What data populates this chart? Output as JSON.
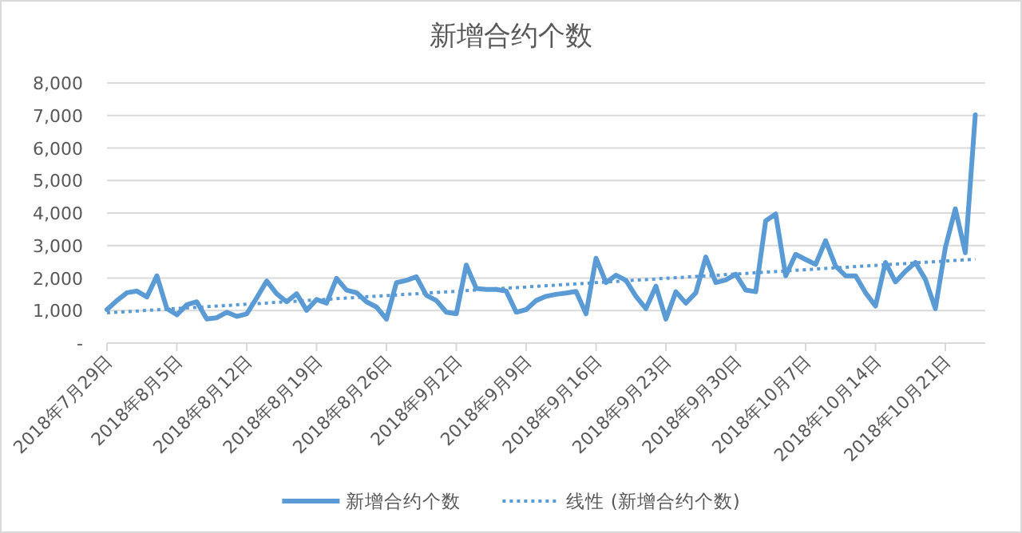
{
  "chart_data": {
    "type": "line",
    "title": "新增合约个数",
    "xlim": [
      "2018-07-29",
      "2018-10-25"
    ],
    "xticks": [
      {
        "value": "2018-07-29",
        "label": "2018年7月29日"
      },
      {
        "value": "2018-08-05",
        "label": "2018年8月5日"
      },
      {
        "value": "2018-08-12",
        "label": "2018年8月12日"
      },
      {
        "value": "2018-08-19",
        "label": "2018年8月19日"
      },
      {
        "value": "2018-08-26",
        "label": "2018年8月26日"
      },
      {
        "value": "2018-09-02",
        "label": "2018年9月2日"
      },
      {
        "value": "2018-09-09",
        "label": "2018年9月9日"
      },
      {
        "value": "2018-09-16",
        "label": "2018年9月16日"
      },
      {
        "value": "2018-09-23",
        "label": "2018年9月23日"
      },
      {
        "value": "2018-09-30",
        "label": "2018年9月30日"
      },
      {
        "value": "2018-10-07",
        "label": "2018年10月7日"
      },
      {
        "value": "2018-10-14",
        "label": "2018年10月14日"
      },
      {
        "value": "2018-10-21",
        "label": "2018年10月21日"
      }
    ],
    "ylim": [
      0,
      8000
    ],
    "yticks": [
      {
        "value": 0,
        "label": "-"
      },
      {
        "value": 1000,
        "label": "1,000"
      },
      {
        "value": 2000,
        "label": "2,000"
      },
      {
        "value": 3000,
        "label": "3,000"
      },
      {
        "value": 4000,
        "label": "4,000"
      },
      {
        "value": 5000,
        "label": "5,000"
      },
      {
        "value": 6000,
        "label": "6,000"
      },
      {
        "value": 7000,
        "label": "7,000"
      },
      {
        "value": 8000,
        "label": "8,000"
      }
    ],
    "grid": "y",
    "legend": "bottom",
    "series": [
      {
        "name": "新增合约个数",
        "color": "#5b9bd5",
        "line_style": "solid",
        "x": [
          "2018-07-29",
          "2018-07-30",
          "2018-07-31",
          "2018-08-01",
          "2018-08-02",
          "2018-08-03",
          "2018-08-04",
          "2018-08-05",
          "2018-08-06",
          "2018-08-07",
          "2018-08-08",
          "2018-08-09",
          "2018-08-10",
          "2018-08-11",
          "2018-08-12",
          "2018-08-13",
          "2018-08-14",
          "2018-08-15",
          "2018-08-16",
          "2018-08-17",
          "2018-08-18",
          "2018-08-19",
          "2018-08-20",
          "2018-08-21",
          "2018-08-22",
          "2018-08-23",
          "2018-08-24",
          "2018-08-25",
          "2018-08-26",
          "2018-08-27",
          "2018-08-28",
          "2018-08-29",
          "2018-08-30",
          "2018-08-31",
          "2018-09-01",
          "2018-09-02",
          "2018-09-03",
          "2018-09-04",
          "2018-09-05",
          "2018-09-06",
          "2018-09-07",
          "2018-09-08",
          "2018-09-09",
          "2018-09-10",
          "2018-09-11",
          "2018-09-12",
          "2018-09-13",
          "2018-09-14",
          "2018-09-15",
          "2018-09-16",
          "2018-09-17",
          "2018-09-18",
          "2018-09-19",
          "2018-09-20",
          "2018-09-21",
          "2018-09-22",
          "2018-09-23",
          "2018-09-24",
          "2018-09-25",
          "2018-09-26",
          "2018-09-27",
          "2018-09-28",
          "2018-09-29",
          "2018-09-30",
          "2018-10-01",
          "2018-10-02",
          "2018-10-03",
          "2018-10-04",
          "2018-10-05",
          "2018-10-06",
          "2018-10-07",
          "2018-10-08",
          "2018-10-09",
          "2018-10-10",
          "2018-10-11",
          "2018-10-12",
          "2018-10-13",
          "2018-10-14",
          "2018-10-15",
          "2018-10-16",
          "2018-10-17",
          "2018-10-18",
          "2018-10-19",
          "2018-10-20",
          "2018-10-21",
          "2018-10-22",
          "2018-10-23",
          "2018-10-24"
        ],
        "values": [
          1030,
          1310,
          1550,
          1600,
          1420,
          2070,
          1060,
          870,
          1180,
          1270,
          740,
          780,
          950,
          820,
          900,
          1390,
          1910,
          1520,
          1270,
          1520,
          1010,
          1340,
          1230,
          1990,
          1630,
          1550,
          1270,
          1110,
          740,
          1860,
          1930,
          2040,
          1470,
          1310,
          950,
          900,
          2400,
          1680,
          1650,
          1650,
          1600,
          950,
          1030,
          1310,
          1440,
          1500,
          1540,
          1590,
          900,
          2610,
          1860,
          2090,
          1930,
          1440,
          1060,
          1750,
          740,
          1580,
          1230,
          1550,
          2650,
          1860,
          1940,
          2120,
          1630,
          1580,
          3760,
          3970,
          2070,
          2730,
          2570,
          2420,
          3150,
          2370,
          2070,
          2070,
          1550,
          1140,
          2480,
          1880,
          2210,
          2480,
          1960,
          1060,
          2940,
          4130,
          2780,
          7020
        ]
      },
      {
        "name": "线性 (新增合约个数)",
        "color": "#5b9bd5",
        "line_style": "dotted",
        "x": [
          "2018-07-29",
          "2018-10-24"
        ],
        "values": [
          930,
          2580
        ]
      }
    ]
  }
}
